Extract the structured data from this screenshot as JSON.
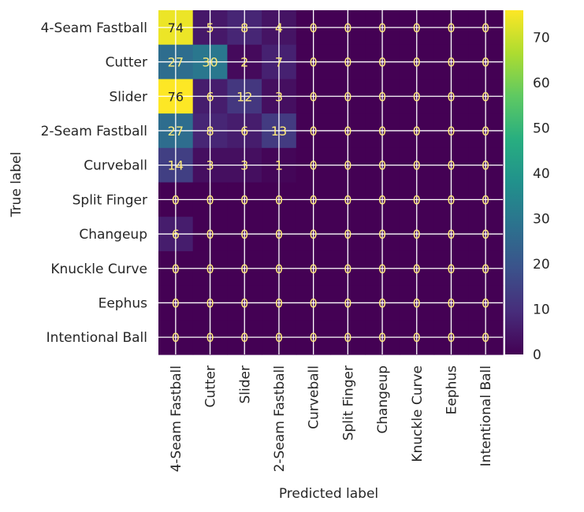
{
  "chart_data": {
    "type": "heatmap",
    "title": "",
    "xlabel": "Predicted label",
    "ylabel": "True label",
    "categories": [
      "4-Seam Fastball",
      "Cutter",
      "Slider",
      "2-Seam Fastball",
      "Curveball",
      "Split Finger",
      "Changeup",
      "Knuckle Curve",
      "Eephus",
      "Intentional Ball"
    ],
    "values": [
      [
        74,
        5,
        8,
        4,
        0,
        0,
        0,
        0,
        0,
        0
      ],
      [
        27,
        30,
        2,
        7,
        0,
        0,
        0,
        0,
        0,
        0
      ],
      [
        76,
        6,
        12,
        3,
        0,
        0,
        0,
        0,
        0,
        0
      ],
      [
        27,
        8,
        6,
        13,
        0,
        0,
        0,
        0,
        0,
        0
      ],
      [
        14,
        3,
        3,
        1,
        0,
        0,
        0,
        0,
        0,
        0
      ],
      [
        0,
        0,
        0,
        0,
        0,
        0,
        0,
        0,
        0,
        0
      ],
      [
        6,
        0,
        0,
        0,
        0,
        0,
        0,
        0,
        0,
        0
      ],
      [
        0,
        0,
        0,
        0,
        0,
        0,
        0,
        0,
        0,
        0
      ],
      [
        0,
        0,
        0,
        0,
        0,
        0,
        0,
        0,
        0,
        0
      ],
      [
        0,
        0,
        0,
        0,
        0,
        0,
        0,
        0,
        0,
        0
      ]
    ],
    "colormap": "viridis",
    "colorbar_range": [
      0,
      76
    ],
    "colorbar_ticks": [
      0,
      10,
      20,
      30,
      40,
      50,
      60,
      70
    ],
    "grid": true
  },
  "colors": {
    "cell_text_dark": "#ffeb7a",
    "grid": "#ffffff",
    "text": "#262626"
  }
}
